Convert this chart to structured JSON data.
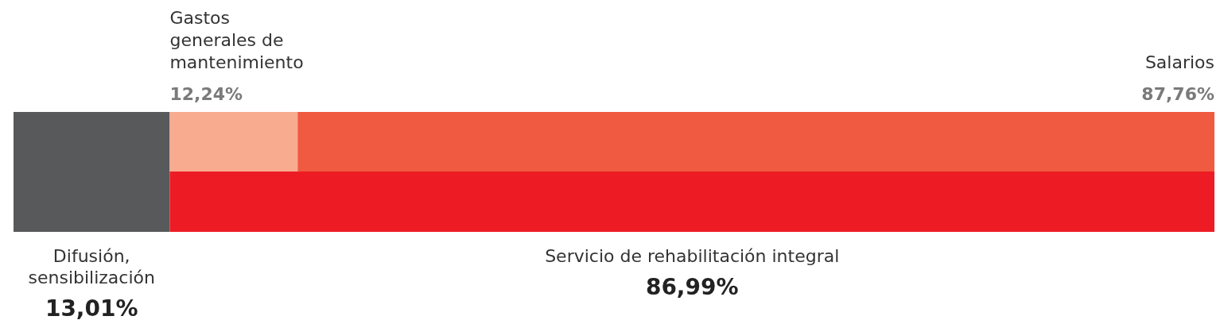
{
  "chart_data": [
    {
      "type": "other",
      "categories": [
        "Difusión, sensibilización",
        "Servicio de rehabilitación integral"
      ],
      "values": [
        13.01,
        86.99
      ],
      "value_labels": [
        "13,01%",
        "86,99%"
      ],
      "colors": [
        "#58595b",
        "#ed1c24"
      ]
    },
    {
      "type": "other",
      "categories": [
        "Gastos generales de mantenimiento",
        "Salarios"
      ],
      "values": [
        12.24,
        87.76
      ],
      "value_labels": [
        "12,24%",
        "87,76%"
      ],
      "colors": [
        "#f9ab8f",
        "#f05a40"
      ]
    }
  ]
}
